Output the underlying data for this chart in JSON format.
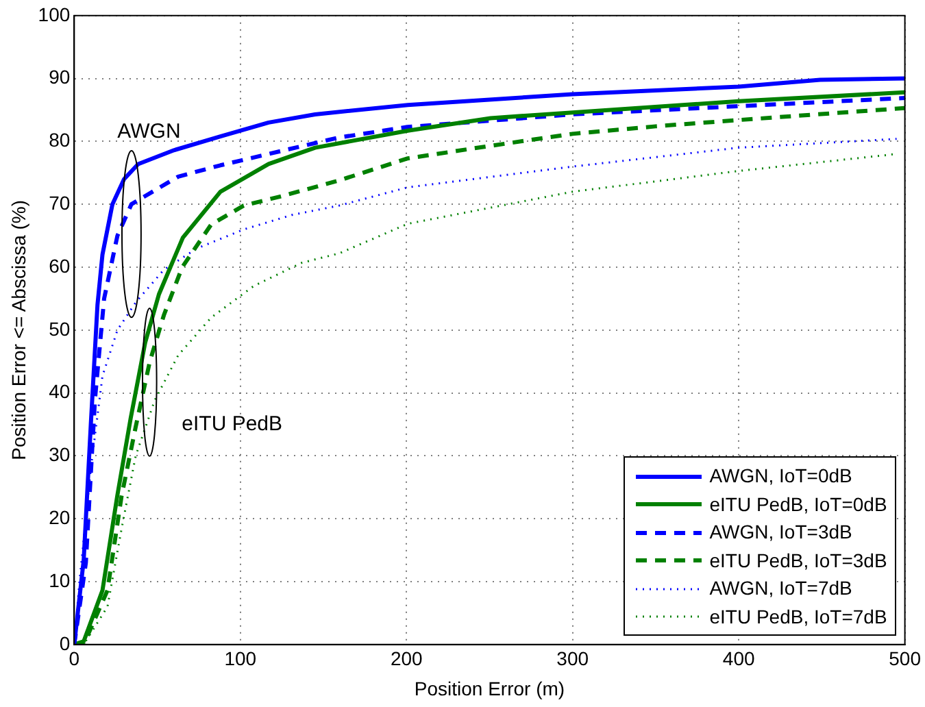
{
  "chart_data": {
    "type": "line",
    "xlabel": "Position Error (m)",
    "ylabel": "Position Error <= Abscissa (%)",
    "xlim": [
      0,
      500
    ],
    "xticks": [
      0,
      100,
      200,
      300,
      400,
      500
    ],
    "ylim": [
      0,
      100
    ],
    "yticks": [
      0,
      10,
      20,
      30,
      40,
      50,
      60,
      70,
      80,
      90,
      100
    ],
    "grid": true,
    "legend": "bottom right",
    "marker": "none",
    "annotations": [
      "AWGN",
      "eITU PedB"
    ],
    "series": [
      {
        "name": "AWGN, IoT=0dB",
        "color": "#0000ff",
        "line_style": "solid",
        "x": [
          0,
          5.7,
          10,
          14,
          17,
          23,
          30,
          38.5,
          60,
          88,
          117,
          145,
          200.8,
          300,
          400,
          449,
          500
        ],
        "values": [
          0,
          13.4,
          35,
          54,
          62,
          70,
          74,
          76.4,
          78.6,
          80.8,
          83,
          84.3,
          85.8,
          87.5,
          88.7,
          89.8,
          90
        ]
      },
      {
        "name": "eITU PedB, IoT=0dB",
        "color": "#008000",
        "line_style": "solid",
        "x": [
          0,
          5.7,
          17,
          25.9,
          34,
          42.7,
          51,
          65.4,
          88,
          117,
          145,
          200.8,
          250.6,
          300,
          400,
          500
        ],
        "values": [
          0,
          0.5,
          8.6,
          23.6,
          36,
          48,
          55.7,
          64.7,
          72,
          76.4,
          79,
          81.7,
          83.7,
          84.6,
          86.4,
          87.8
        ]
      },
      {
        "name": "AWGN, IoT=3dB",
        "color": "#0000ff",
        "line_style": "dashed",
        "x": [
          0,
          7,
          12.5,
          18,
          26,
          34.4,
          48.4,
          62.6,
          88,
          117,
          159,
          200.8,
          300,
          400,
          500
        ],
        "values": [
          0,
          13,
          39,
          55,
          65,
          70,
          72.2,
          74.4,
          76.2,
          78,
          80.6,
          82.3,
          84.3,
          85.6,
          86.9
        ]
      },
      {
        "name": "eITU PedB, IoT=3dB",
        "color": "#008000",
        "line_style": "dashed",
        "x": [
          0,
          5.7,
          20,
          28.5,
          37,
          45.5,
          54,
          65,
          82.5,
          102,
          125,
          159.5,
          200.8,
          250.6,
          300,
          350,
          400,
          500
        ],
        "values": [
          0,
          0,
          8.6,
          23.6,
          34.6,
          45,
          52.4,
          60,
          66.8,
          69.8,
          71.3,
          73.8,
          77.3,
          79.3,
          81.2,
          82.4,
          83.4,
          85.3
        ]
      },
      {
        "name": "AWGN, IoT=7dB",
        "color": "#0000ff",
        "line_style": "dotted",
        "x": [
          0,
          3,
          10,
          17,
          26,
          37,
          54,
          74,
          102,
          131,
          159.5,
          200.8,
          300,
          400,
          495
        ],
        "values": [
          0,
          9.5,
          28,
          42.7,
          50,
          54.4,
          59.6,
          63,
          66,
          68.3,
          69.8,
          72.7,
          76,
          79,
          80.4
        ]
      },
      {
        "name": "eITU PedB, IoT=7dB",
        "color": "#008000",
        "line_style": "dotted",
        "x": [
          0,
          5.7,
          20,
          28.5,
          37,
          48.4,
          62.6,
          82.5,
          108,
          137,
          159.5,
          200.8,
          300,
          400,
          495
        ],
        "values": [
          0,
          0,
          6,
          18.4,
          30,
          38.8,
          46,
          52,
          57,
          60.7,
          62.2,
          66.9,
          72,
          75.3,
          78
        ]
      }
    ]
  }
}
